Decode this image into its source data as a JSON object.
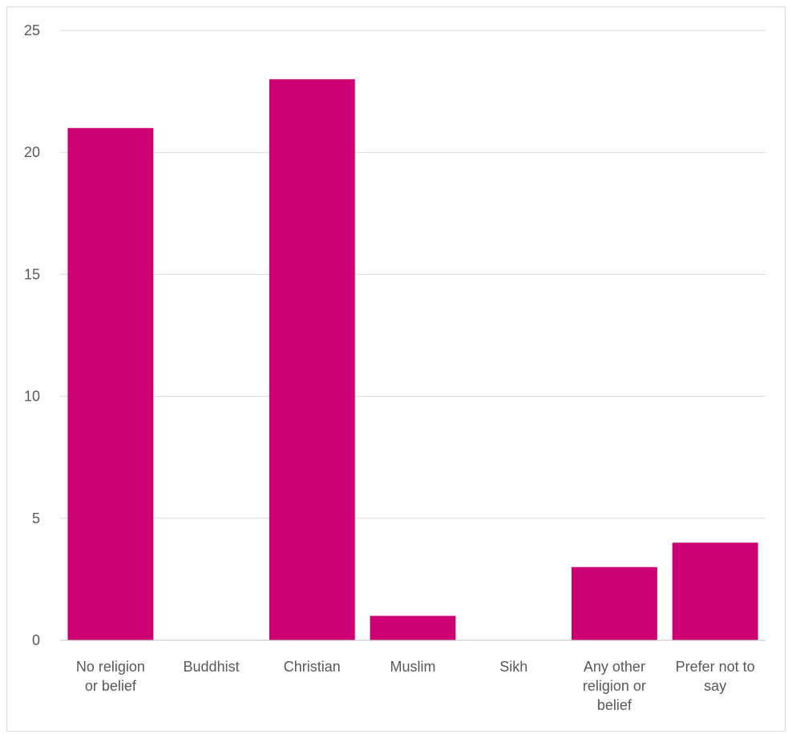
{
  "chart_data": {
    "type": "bar",
    "title": "",
    "xlabel": "",
    "ylabel": "",
    "categories": [
      "No religion or belief",
      "Buddhist",
      "Christian",
      "Muslim",
      "Sikh",
      "Any other religion or belief",
      "Prefer not to say"
    ],
    "category_lines": [
      [
        "No religion",
        "or belief"
      ],
      [
        "Buddhist"
      ],
      [
        "Christian"
      ],
      [
        "Muslim"
      ],
      [
        "Sikh"
      ],
      [
        "Any other",
        "religion or",
        "belief"
      ],
      [
        "Prefer not to",
        "say"
      ]
    ],
    "values": [
      21,
      0,
      23,
      1,
      0,
      3,
      4
    ],
    "ylim": [
      0,
      25
    ],
    "yticks": [
      0,
      5,
      10,
      15,
      20,
      25
    ],
    "grid": true,
    "legend": "none",
    "colors": {
      "bar": "#CC0073",
      "grid": "#d9d9d9",
      "axis": "#bfbfbf",
      "text": "#595959"
    }
  }
}
